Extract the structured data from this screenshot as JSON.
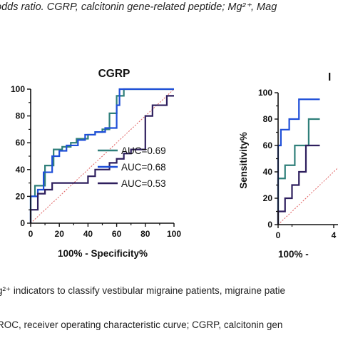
{
  "captions": {
    "top": "odds ratio. CGRP, calcitonin gene-related peptide; Mg²⁺, Mag",
    "bottom1": "g²⁺ indicators to classify vestibular migraine patients, migraine patie",
    "bottom2": "ROC, receiver operating characteristic curve; CGRP, calcitonin gen"
  },
  "chart_data": [
    {
      "type": "line",
      "title": "CGRP",
      "xlabel": "100% - Specificity%",
      "ylabel": "",
      "xlim": [
        0,
        100
      ],
      "ylim": [
        0,
        100
      ],
      "xticks": [
        "0",
        "20",
        "40",
        "60",
        "80",
        "100"
      ],
      "yticks": [
        "0",
        "20",
        "40",
        "60",
        "80",
        "100"
      ],
      "reference_line": true,
      "legend_position": "right",
      "series": [
        {
          "name": "AUC=0.69",
          "color": "#2f7f7a",
          "x": [
            0,
            0,
            3,
            3,
            10,
            10,
            16,
            16,
            22,
            22,
            28,
            28,
            32,
            32,
            40,
            40,
            45,
            45,
            50,
            50,
            55,
            55,
            60,
            60,
            65,
            65,
            100
          ],
          "y": [
            0,
            20,
            20,
            28,
            28,
            43,
            43,
            55,
            55,
            57,
            57,
            60,
            60,
            63,
            63,
            66,
            66,
            68,
            68,
            70,
            70,
            82,
            82,
            95,
            95,
            100,
            100
          ]
        },
        {
          "name": "AUC=0.68",
          "color": "#1f4fd8",
          "x": [
            0,
            0,
            5,
            5,
            9,
            9,
            15,
            15,
            20,
            20,
            25,
            25,
            33,
            33,
            38,
            38,
            45,
            45,
            52,
            52,
            60,
            60,
            62,
            62,
            67,
            67,
            100
          ],
          "y": [
            0,
            20,
            20,
            25,
            25,
            38,
            38,
            50,
            50,
            54,
            54,
            58,
            58,
            62,
            62,
            66,
            66,
            68,
            68,
            71,
            71,
            88,
            88,
            100,
            100,
            100,
            100
          ]
        },
        {
          "name": "AUC=0.53",
          "color": "#2e1f5e",
          "x": [
            0,
            0,
            5,
            5,
            10,
            10,
            15,
            15,
            40,
            40,
            45,
            45,
            55,
            55,
            60,
            60,
            65,
            65,
            70,
            70,
            80,
            80,
            85,
            85,
            95,
            95,
            100
          ],
          "y": [
            0,
            10,
            10,
            22,
            22,
            25,
            25,
            30,
            30,
            35,
            35,
            40,
            40,
            45,
            45,
            48,
            48,
            52,
            52,
            55,
            55,
            80,
            80,
            88,
            88,
            95,
            95
          ]
        }
      ]
    },
    {
      "type": "line",
      "title": "",
      "xlabel": "100% -",
      "ylabel": "Sensitivity%",
      "xlim": [
        0,
        100
      ],
      "ylim": [
        0,
        100
      ],
      "xticks": [
        "0",
        "4"
      ],
      "yticks": [
        "0",
        "20",
        "40",
        "60",
        "80",
        "100"
      ],
      "reference_line": true,
      "series": [
        {
          "color": "#2f7f7a",
          "x": [
            0,
            0,
            5,
            5,
            12,
            12,
            22,
            22,
            30
          ],
          "y": [
            0,
            35,
            35,
            45,
            45,
            60,
            60,
            80,
            80
          ]
        },
        {
          "color": "#1f4fd8",
          "x": [
            0,
            0,
            2,
            2,
            8,
            8,
            15,
            15,
            30
          ],
          "y": [
            0,
            60,
            60,
            72,
            72,
            80,
            80,
            95,
            95
          ]
        },
        {
          "color": "#2e1f5e",
          "x": [
            0,
            0,
            5,
            5,
            10,
            10,
            15,
            15,
            20,
            20,
            30
          ],
          "y": [
            0,
            10,
            10,
            20,
            20,
            30,
            30,
            40,
            40,
            60,
            60
          ]
        }
      ]
    }
  ]
}
